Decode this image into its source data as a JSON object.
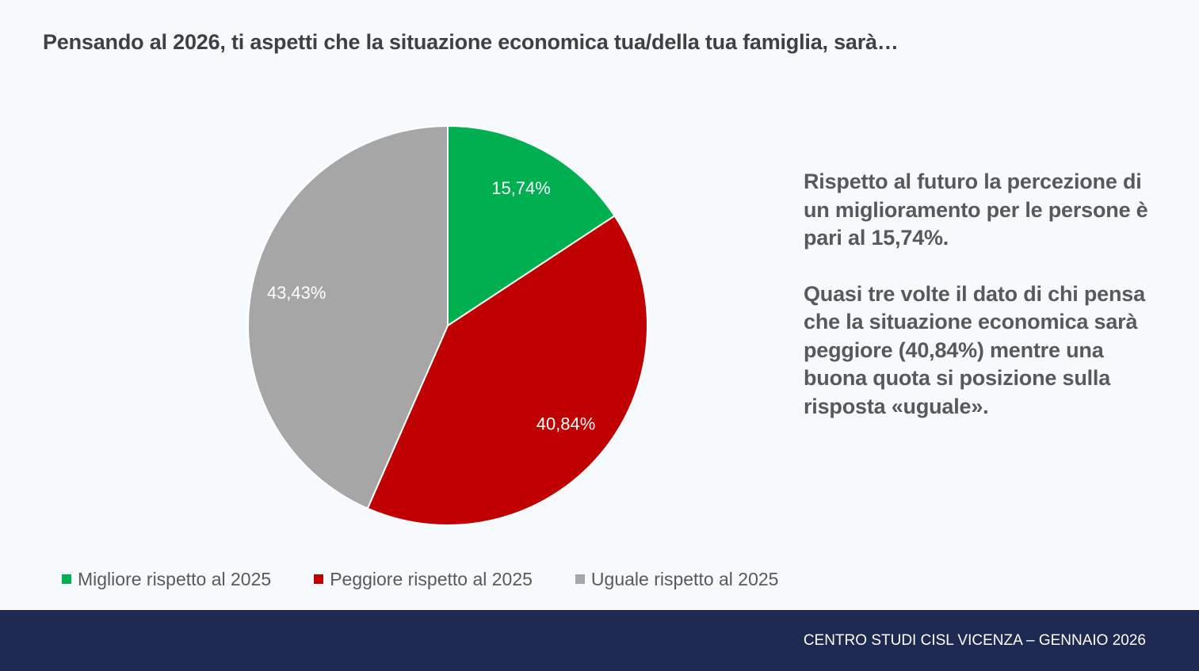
{
  "slide": {
    "title": "Pensando al 2026, ti aspetti che la situazione economica tua/della tua famiglia, sarà…",
    "commentary": [
      "Rispetto al futuro la percezione di un miglioramento per le persone è pari al 15,74%.",
      "Quasi tre volte il dato di chi pensa che la situazione economica sarà peggiore (40,84%) mentre una buona quota si posizione sulla risposta «uguale»."
    ],
    "footer": "CENTRO STUDI CISL VICENZA – GENNAIO 2026"
  },
  "chart_data": {
    "type": "pie",
    "title": "",
    "legend_position": "bottom",
    "slices": [
      {
        "label": "Migliore rispetto al 2025",
        "value": 15.74,
        "display": "15,74%",
        "color": "#00b050"
      },
      {
        "label": "Peggiore rispetto al 2025",
        "value": 40.84,
        "display": "40,84%",
        "color": "#c00000"
      },
      {
        "label": "Uguale rispetto al 2025",
        "value": 43.43,
        "display": "43,43%",
        "color": "#a6a6a6"
      }
    ]
  }
}
